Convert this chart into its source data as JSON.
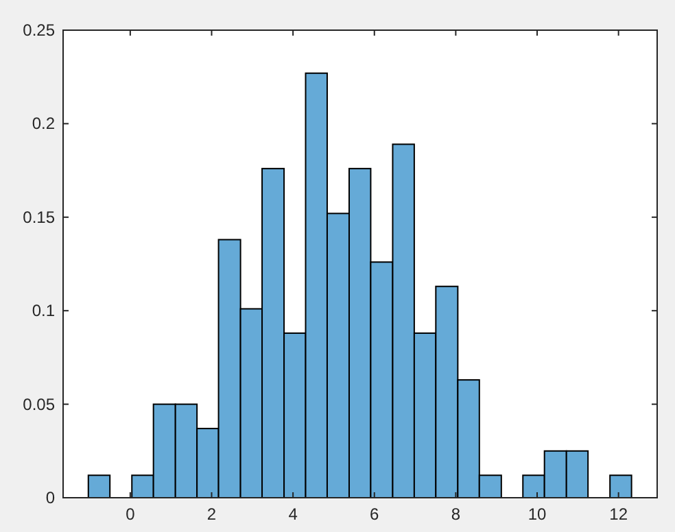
{
  "chart_data": {
    "type": "histogram",
    "color": "#65aad7",
    "bins": [
      -1.03,
      -0.5,
      0.04,
      0.57,
      1.11,
      1.64,
      2.17,
      2.71,
      3.24,
      3.78,
      4.31,
      4.84,
      5.38,
      5.91,
      6.45,
      6.98,
      7.51,
      8.05,
      8.58,
      9.12,
      9.65,
      10.18,
      10.72,
      11.25,
      11.79,
      12.32
    ],
    "values": [
      0.012,
      0,
      0.012,
      0.05,
      0.05,
      0.037,
      0.138,
      0.101,
      0.176,
      0.088,
      0.227,
      0.152,
      0.176,
      0.126,
      0.189,
      0.088,
      0.113,
      0.063,
      0.012,
      0,
      0.012,
      0.025,
      0.025,
      0,
      0.012
    ],
    "xlim": [
      -1.65,
      12.95
    ],
    "xticks": [
      0,
      2,
      4,
      6,
      8,
      10,
      12
    ],
    "ylim": [
      0,
      0.25
    ],
    "yticks": [
      0,
      0.05,
      0.1,
      0.15,
      0.2,
      0.25
    ]
  }
}
